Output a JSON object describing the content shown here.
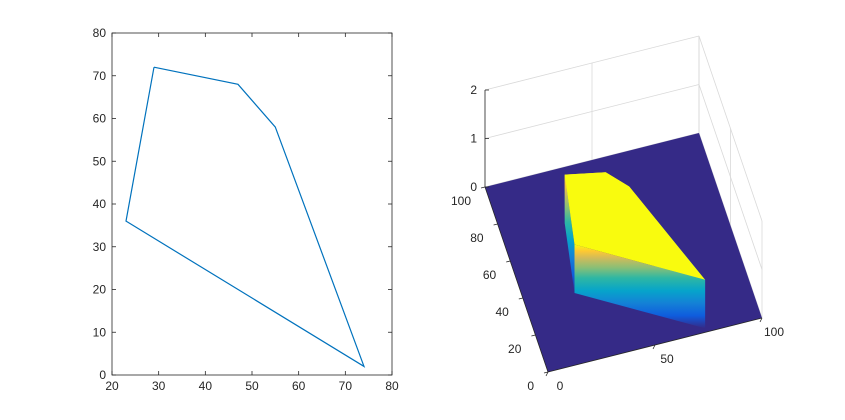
{
  "chart_data": [
    {
      "type": "line",
      "title": "",
      "xlabel": "",
      "ylabel": "",
      "xlim": [
        20,
        80
      ],
      "ylim": [
        0,
        80
      ],
      "xticks": [
        "20",
        "30",
        "40",
        "50",
        "60",
        "70",
        "80"
      ],
      "yticks": [
        "0",
        "10",
        "20",
        "30",
        "40",
        "50",
        "60",
        "70",
        "80"
      ],
      "grid": false,
      "series": [
        {
          "color": "#0072bd",
          "x": [
            29,
            47,
            55,
            74,
            23,
            29
          ],
          "y": [
            72,
            68,
            58,
            2,
            36,
            72
          ]
        }
      ]
    },
    {
      "type": "surface",
      "title": "",
      "xlabel": "",
      "ylabel": "",
      "zlabel": "",
      "xlim": [
        0,
        100
      ],
      "ylim": [
        0,
        100
      ],
      "zlim": [
        0,
        2
      ],
      "xticks": [
        "0",
        "50",
        "100"
      ],
      "yticks": [
        "0",
        "20",
        "40",
        "60",
        "80",
        "100"
      ],
      "zticks": [
        "0",
        "1",
        "2"
      ],
      "colormap": "parula",
      "grid": true,
      "base_color": "#352a87",
      "top_color": "#f9fb0e",
      "region_polygon": {
        "x": [
          29,
          47,
          55,
          74,
          23,
          29
        ],
        "y": [
          72,
          68,
          58,
          2,
          36,
          72
        ],
        "z_inside": 1,
        "z_outside": 0
      }
    }
  ]
}
